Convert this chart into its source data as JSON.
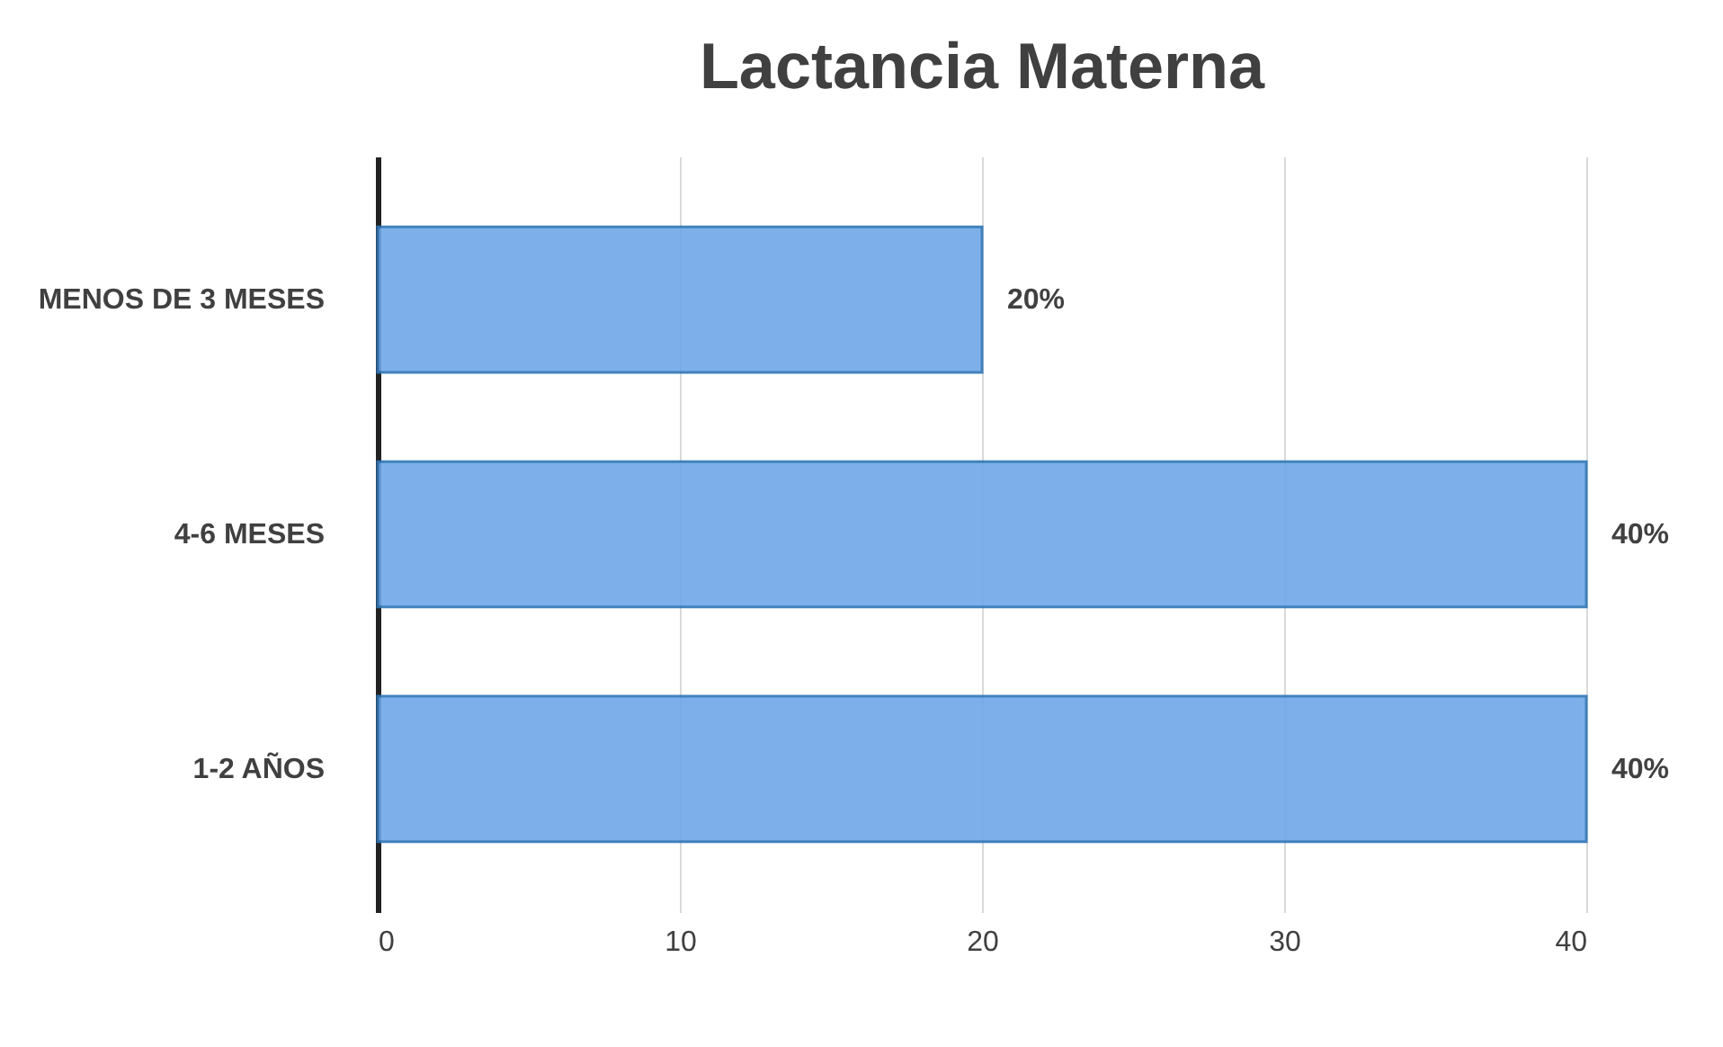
{
  "chart_data": {
    "type": "bar",
    "title": "Lactancia Materna",
    "orientation": "horizontal",
    "categories": [
      "MENOS DE 3 MESES",
      "4-6 MESES",
      "1-2 AÑOS"
    ],
    "values": [
      20,
      40,
      40
    ],
    "value_labels": [
      "20%",
      "40%",
      "40%"
    ],
    "color": "#6fa8e8",
    "xlim": [
      0,
      40
    ],
    "xticks": [
      0,
      10,
      20,
      30,
      40
    ],
    "grid": "x"
  }
}
